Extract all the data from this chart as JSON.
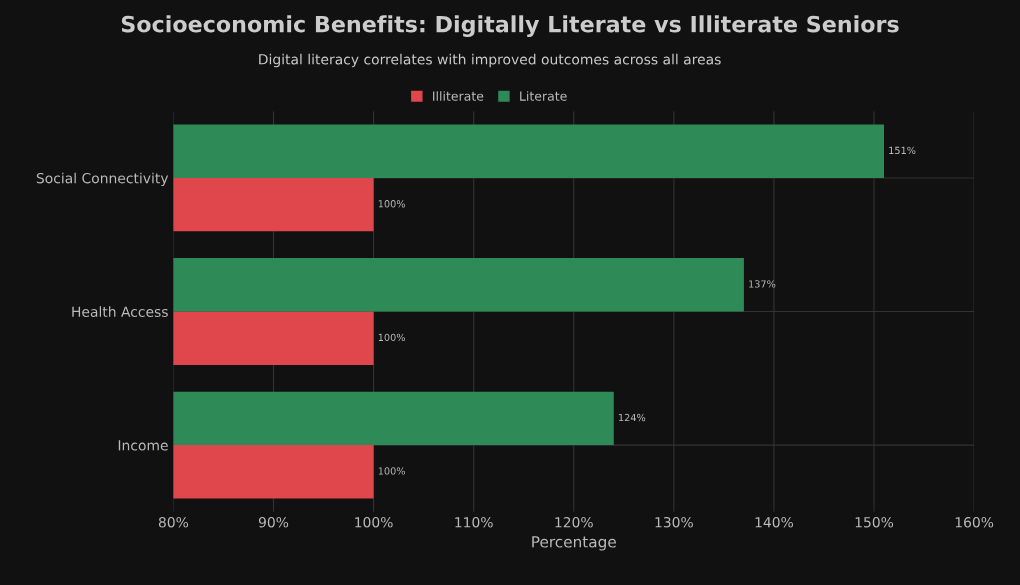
{
  "chart_data": {
    "type": "bar",
    "orientation": "horizontal",
    "title": "Socioeconomic Benefits: Digitally Literate vs Illiterate Seniors",
    "subtitle": "Digital literacy correlates with improved outcomes across all areas",
    "xlabel": "Percentage",
    "categories": [
      "Social Connectivity",
      "Health Access",
      "Income"
    ],
    "series": [
      {
        "name": "Illiterate",
        "color": "#e0474c",
        "values": [
          100,
          100,
          100
        ],
        "value_labels": [
          "100%",
          "100%",
          "100%"
        ]
      },
      {
        "name": "Literate",
        "color": "#2e8b57",
        "values": [
          151,
          137,
          124
        ],
        "value_labels": [
          "151%",
          "137%",
          "124%"
        ]
      }
    ],
    "xlim": [
      80,
      160
    ],
    "xticks": [
      {
        "value": 80,
        "label": "80%"
      },
      {
        "value": 90,
        "label": "90%"
      },
      {
        "value": 100,
        "label": "100%"
      },
      {
        "value": 110,
        "label": "110%"
      },
      {
        "value": 120,
        "label": "120%"
      },
      {
        "value": 130,
        "label": "130%"
      },
      {
        "value": 140,
        "label": "140%"
      },
      {
        "value": 150,
        "label": "150%"
      },
      {
        "value": 160,
        "label": "160%"
      }
    ],
    "grid": true,
    "legend": "top"
  }
}
